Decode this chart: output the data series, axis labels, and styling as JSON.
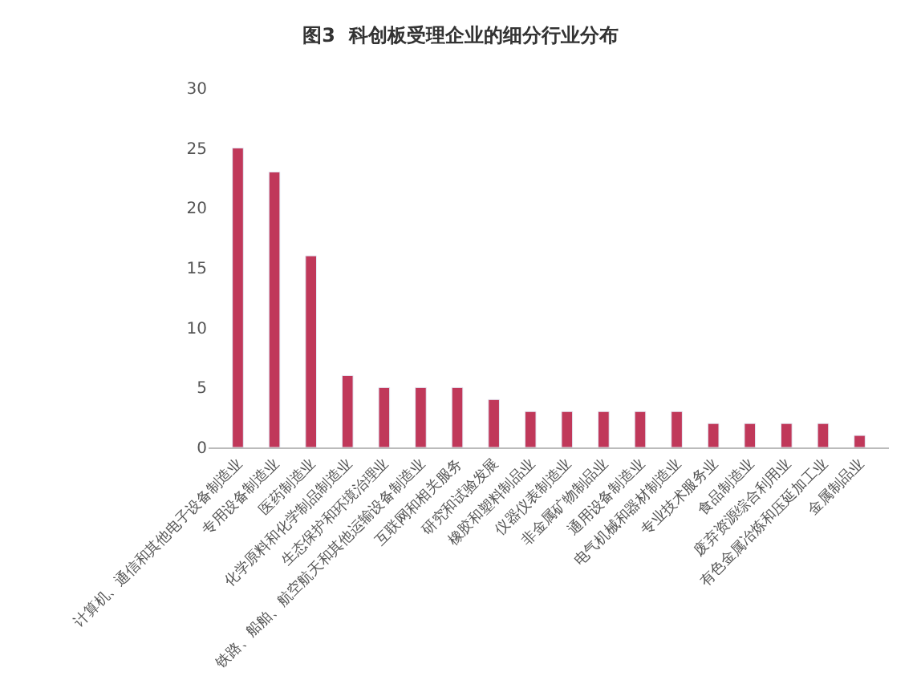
{
  "chart_data": {
    "type": "bar",
    "title": "图3  科创板受理企业的细分行业分布",
    "categories": [
      "计算机、通信和其他电子设备制造业",
      "专用设备制造业",
      "医药制造业",
      "化学原料和化学制品制造业",
      "生态保护和环境治理业",
      "铁路、船舶、航空航天和其他运输设备制造业",
      "互联网和相关服务",
      "研究和试验发展",
      "橡胶和塑料制品业",
      "仪器仪表制造业",
      "非金属矿物制品业",
      "通用设备制造业",
      "电气机械和器材制造业",
      "专业技术服务业",
      "食品制造业",
      "废弃资源综合利用业",
      "有色金属冶炼和压延加工业",
      "金属制品业"
    ],
    "values": [
      25,
      23,
      16,
      6,
      5,
      5,
      5,
      4,
      3,
      3,
      3,
      3,
      3,
      2,
      2,
      2,
      2,
      1
    ],
    "color": "#c0385a",
    "ylim": [
      0,
      30
    ],
    "yticks": [
      0,
      5,
      10,
      15,
      20,
      25,
      30
    ]
  }
}
